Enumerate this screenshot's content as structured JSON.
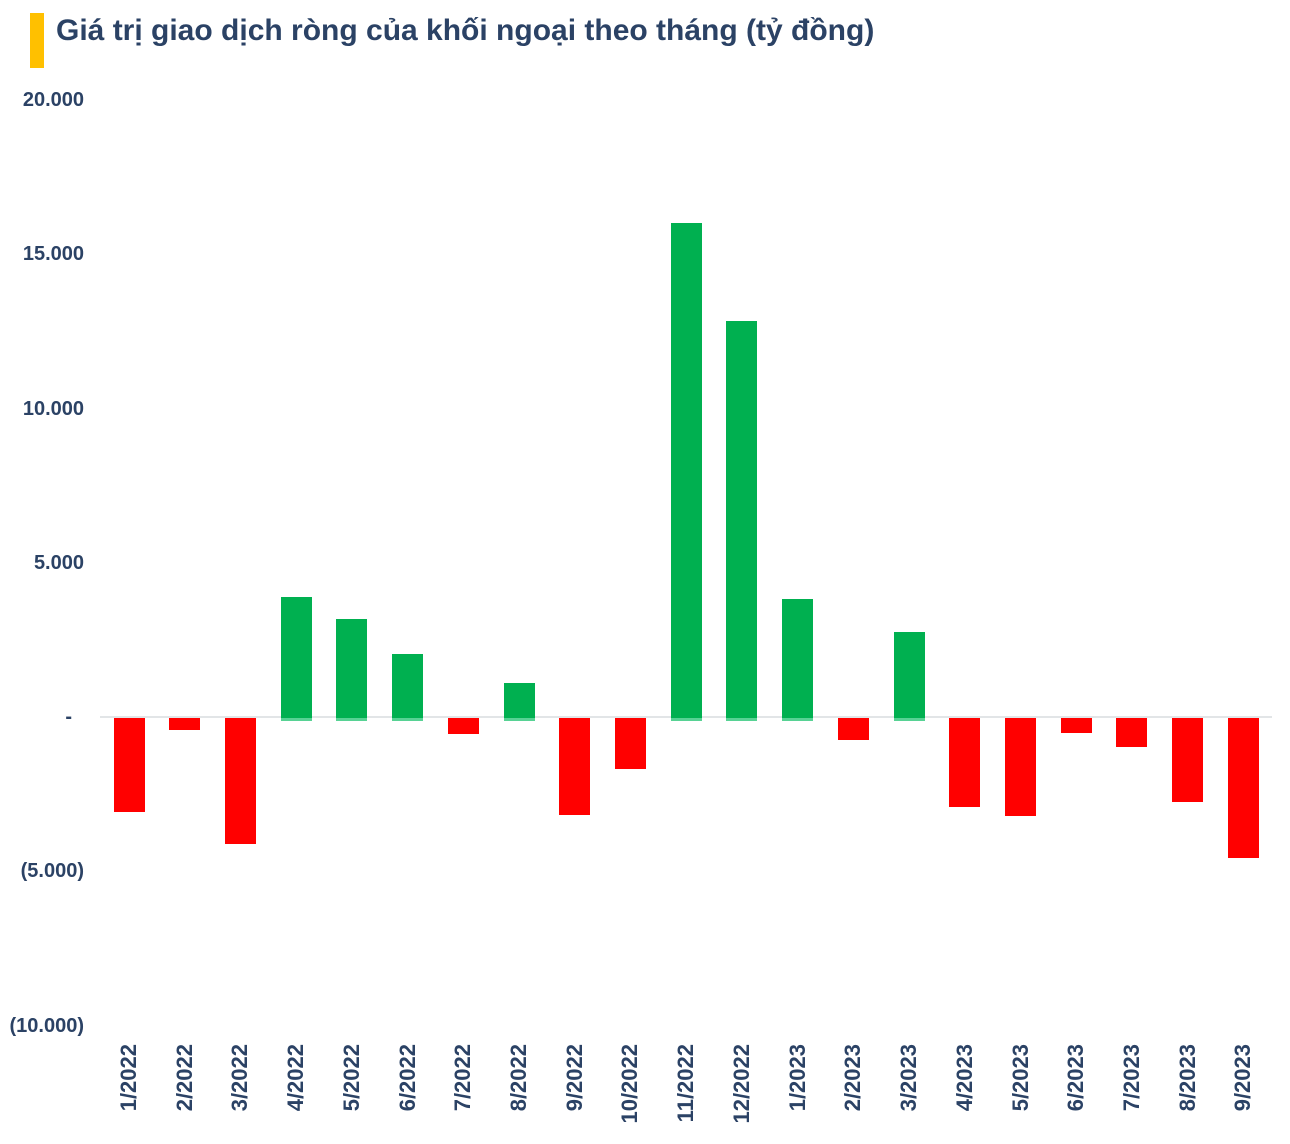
{
  "header": {
    "title": "Giá trị giao dịch ròng của khối ngoại theo tháng (tỷ đồng)",
    "accent_color": "#FFC000",
    "text_color": "#2B4265"
  },
  "chart_data": {
    "type": "bar",
    "title": "Giá trị giao dịch ròng của khối ngoại theo tháng (tỷ đồng)",
    "unit": "tỷ đồng",
    "categories": [
      "1/2022",
      "2/2022",
      "3/2022",
      "4/2022",
      "5/2022",
      "6/2022",
      "7/2022",
      "8/2022",
      "9/2022",
      "10/2022",
      "11/2022",
      "12/2022",
      "1/2023",
      "2/2023",
      "3/2023",
      "4/2023",
      "5/2023",
      "6/2023",
      "7/2023",
      "8/2023",
      "9/2023"
    ],
    "values": [
      -3050,
      -400,
      -4080,
      3900,
      3170,
      2050,
      -530,
      1110,
      -3150,
      -1640,
      16000,
      12850,
      3820,
      -720,
      2740,
      -2890,
      -3180,
      -500,
      -940,
      -2710,
      -4530
    ],
    "y_tick_values": [
      20000,
      15000,
      10000,
      5000,
      0,
      -5000,
      -10000
    ],
    "y_tick_labels": [
      "20.000",
      "15.000",
      "10.000",
      "5.000",
      "-",
      "(5.000)",
      "(10.000)"
    ],
    "ylim": [
      -10000,
      20000
    ],
    "xlabel": "",
    "ylabel": "",
    "legend": "none",
    "grid": "zero-baseline-only",
    "x_tick_rotation": -90,
    "positive_color": "#00B050",
    "negative_color": "#FF0000",
    "baseline_color": "#E2E5E7",
    "tick_label_color": "#2B4265"
  }
}
